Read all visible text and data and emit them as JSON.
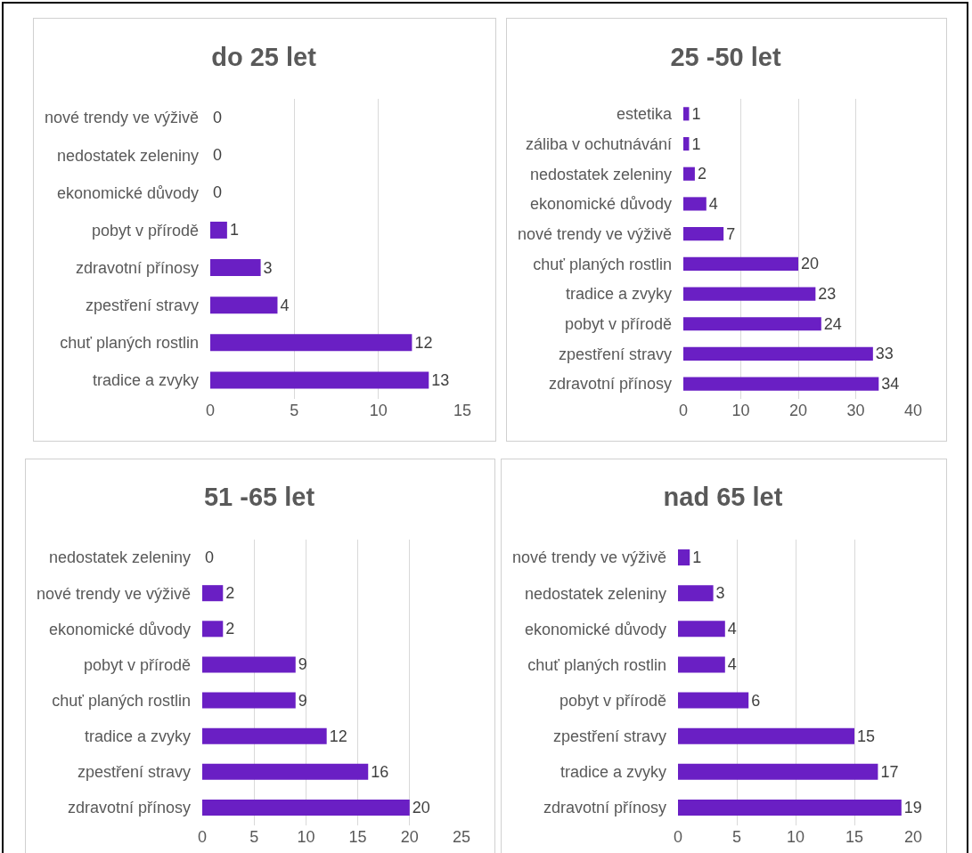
{
  "chart_data": [
    {
      "type": "bar",
      "orientation": "horizontal",
      "title": "do 25 let",
      "categories": [
        "nové trendy ve výživě",
        "nedostatek zeleniny",
        "ekonomické důvody",
        "pobyt v přírodě",
        "zdravotní přínosy",
        "zpestření stravy",
        "chuť planých rostlin",
        "tradice a zvyky"
      ],
      "values": [
        0,
        0,
        0,
        1,
        3,
        4,
        12,
        13
      ],
      "color": "#6a1fc4",
      "xlim": [
        0,
        15
      ],
      "xticks": [
        0,
        5,
        10,
        15
      ],
      "grid": "x",
      "data_labels": true
    },
    {
      "type": "bar",
      "orientation": "horizontal",
      "title": "25 -50 let",
      "categories": [
        "estetika",
        "záliba v ochutnávání",
        "nedostatek zeleniny",
        "ekonomické důvody",
        "nové trendy ve výživě",
        "chuť planých rostlin",
        "tradice a zvyky",
        "pobyt v přírodě",
        "zpestření stravy",
        "zdravotní přínosy"
      ],
      "values": [
        1,
        1,
        2,
        4,
        7,
        20,
        23,
        24,
        33,
        34
      ],
      "color": "#6a1fc4",
      "xlim": [
        0,
        40
      ],
      "xticks": [
        0,
        10,
        20,
        30,
        40
      ],
      "grid": "x",
      "data_labels": true
    },
    {
      "type": "bar",
      "orientation": "horizontal",
      "title": "51 -65 let",
      "categories": [
        "nedostatek zeleniny",
        "nové trendy ve výživě",
        "ekonomické důvody",
        "pobyt v přírodě",
        "chuť planých rostlin",
        "tradice a zvyky",
        "zpestření stravy",
        "zdravotní přínosy"
      ],
      "values": [
        0,
        2,
        2,
        9,
        9,
        12,
        16,
        20
      ],
      "color": "#6a1fc4",
      "xlim": [
        0,
        25
      ],
      "xticks": [
        0,
        5,
        10,
        15,
        20,
        25
      ],
      "grid": "x",
      "data_labels": true
    },
    {
      "type": "bar",
      "orientation": "horizontal",
      "title": "nad 65 let",
      "categories": [
        "nové trendy ve výživě",
        "nedostatek zeleniny",
        "ekonomické důvody",
        "chuť planých rostlin",
        "pobyt v přírodě",
        "zpestření stravy",
        "tradice a zvyky",
        "zdravotní přínosy"
      ],
      "values": [
        1,
        3,
        4,
        4,
        6,
        15,
        17,
        19
      ],
      "color": "#6a1fc4",
      "xlim": [
        0,
        20
      ],
      "xticks": [
        0,
        5,
        10,
        15,
        20
      ],
      "grid": "x",
      "data_labels": true
    }
  ]
}
